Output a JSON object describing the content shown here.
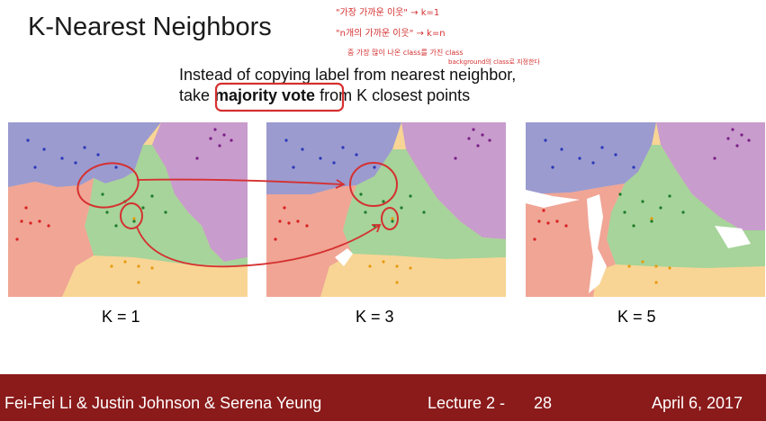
{
  "slide": {
    "title": "K-Nearest Neighbors",
    "line1": "Instead of copying label from nearest neighbor,",
    "line2_pre": "take ",
    "line2_bold": "majority vote",
    "line2_post": " from K closest points"
  },
  "panels": [
    {
      "label": "K = 1"
    },
    {
      "label": "K = 3"
    },
    {
      "label": "K = 5"
    }
  ],
  "annotations": {
    "note1": "\"가장 가까운 이웃\" → k=1",
    "note2": "\"n개의 가까운 이웃\" → k=n",
    "note3": "중 가장 많이 나온 class를 가진 class",
    "note4": "background의 class로 지정한다"
  },
  "footer": {
    "authors": "Fei-Fei Li & Justin Johnson & Serena Yeung",
    "lecture": "Lecture 2 -",
    "page": "28",
    "date": "April 6, 2017"
  },
  "colors": {
    "blue_region": "#9b9bcf",
    "purple_region": "#c89ccc",
    "green_region": "#a6d49a",
    "red_region": "#f0a595",
    "yellow_region": "#f8d595",
    "footer_bg": "#8b1a1a",
    "annotation_red": "#d53030"
  }
}
